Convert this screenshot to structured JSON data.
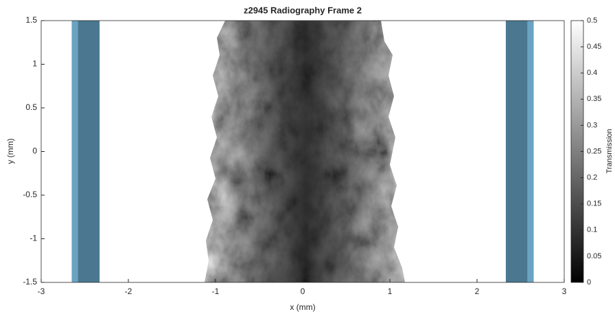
{
  "chart_data": {
    "type": "image",
    "title": "z2945 Radiography Frame 2",
    "xlabel": "x (mm)",
    "ylabel": "y (mm)",
    "xlim": [
      -3,
      3
    ],
    "xticks": [
      -3,
      -2,
      -1,
      0,
      1,
      2,
      3
    ],
    "ylim": [
      -1.5,
      1.5
    ],
    "yticks": [
      -1.5,
      -1,
      -0.5,
      0,
      0.5,
      1,
      1.5
    ],
    "colorbar": {
      "label": "Transmission",
      "clim": [
        0,
        0.5
      ],
      "colormap": "gray",
      "ticks": [
        0,
        0.05,
        0.1,
        0.15,
        0.2,
        0.25,
        0.3,
        0.35,
        0.4,
        0.45,
        0.5
      ]
    },
    "shaded_regions": [
      {
        "x0": -2.65,
        "x1": -2.58,
        "color": "#6aa3c2"
      },
      {
        "x0": -2.58,
        "x1": -2.33,
        "color": "#4b7890"
      },
      {
        "x0": 2.33,
        "x1": 2.58,
        "color": "#4b7890"
      },
      {
        "x0": 2.58,
        "x1": 2.65,
        "color": "#6aa3c2"
      }
    ]
  }
}
